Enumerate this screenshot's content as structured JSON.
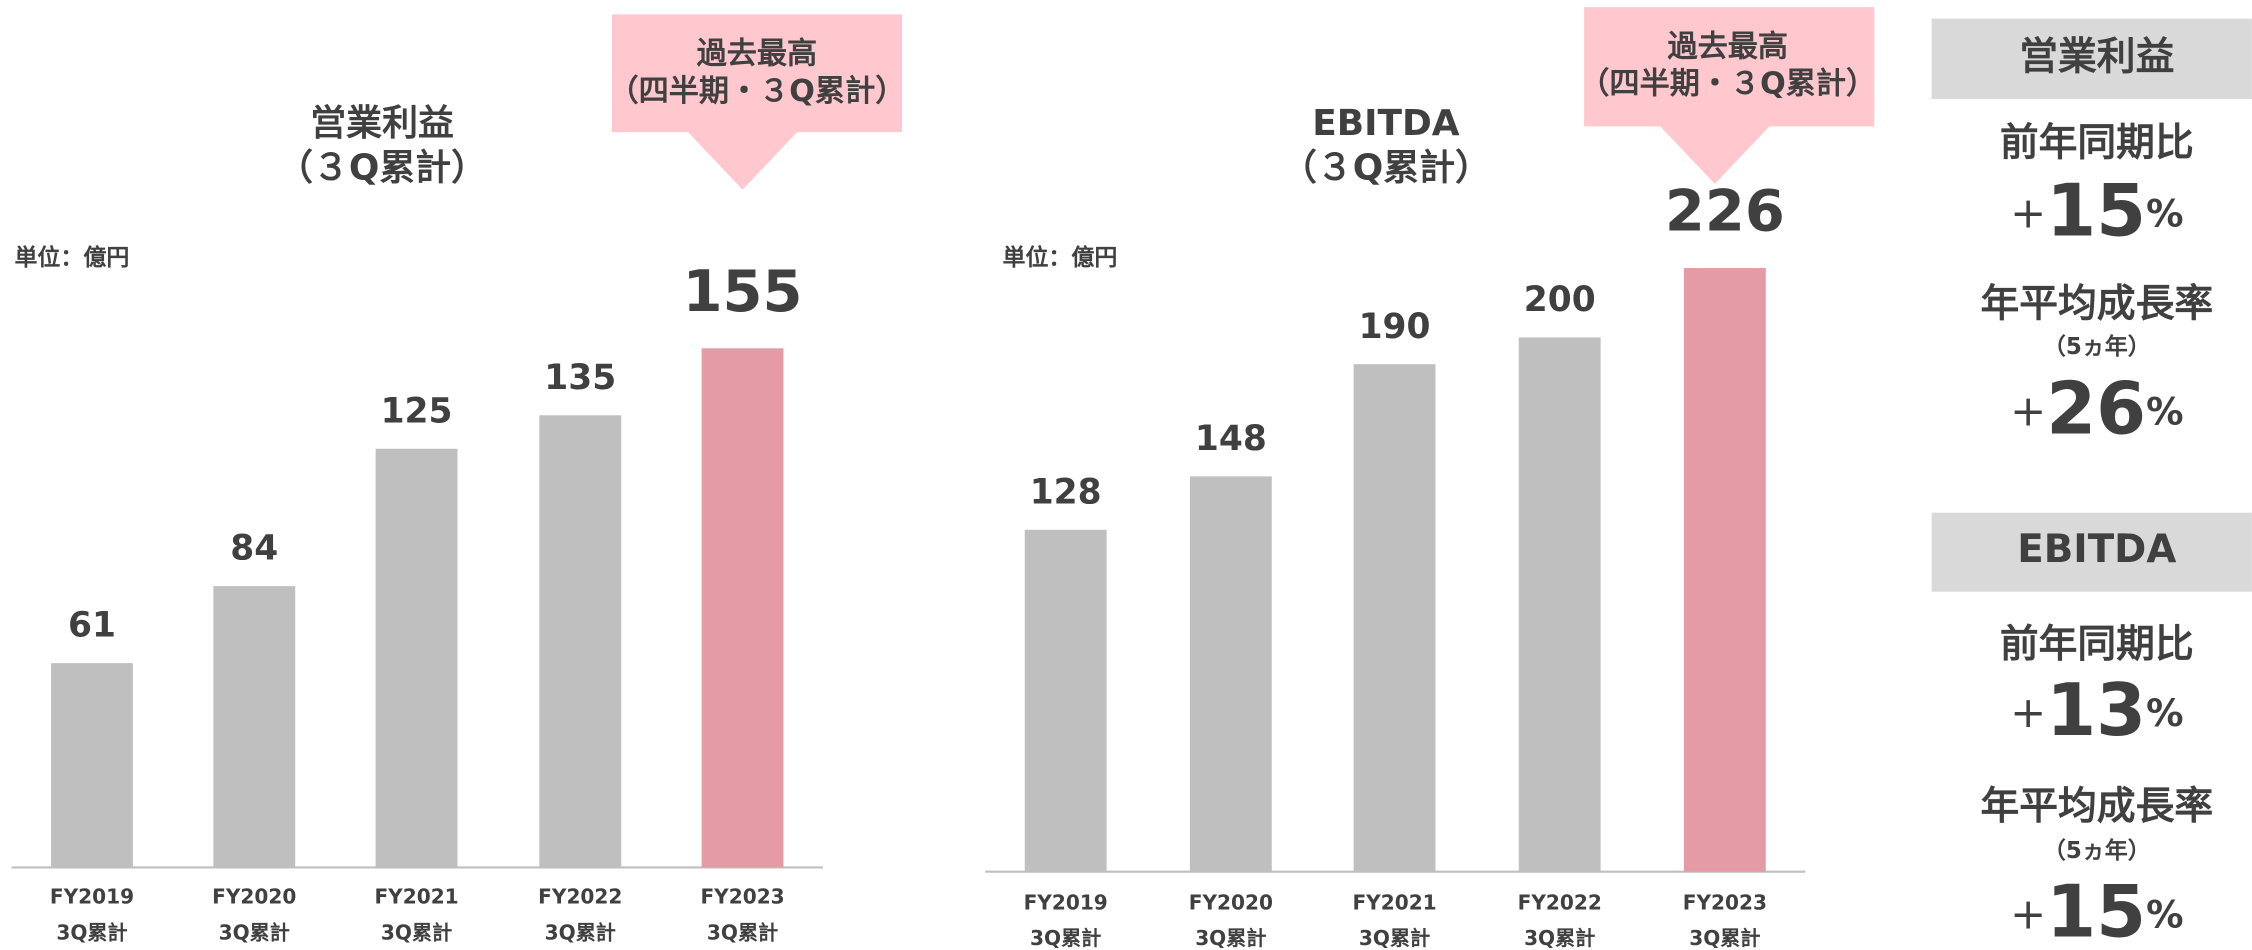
{
  "chart_data": [
    {
      "type": "bar",
      "title": "営業利益\n（３Q累計）",
      "unit_label": "単位：億円",
      "categories": [
        "FY2019\n3Q累計",
        "FY2020\n3Q累計",
        "FY2021\n3Q累計",
        "FY2022\n3Q累計",
        "FY2023\n3Q累計"
      ],
      "values": [
        61,
        84,
        125,
        135,
        155
      ],
      "colors": [
        "#bfbfbf",
        "#bfbfbf",
        "#bfbfbf",
        "#bfbfbf",
        "#e59ba5"
      ],
      "ylim": [
        0,
        250
      ],
      "annotation": "過去最高\n（四半期・３Q累計）"
    },
    {
      "type": "bar",
      "title": "EBITDA\n（３Q累計）",
      "unit_label": "単位：億円",
      "categories": [
        "FY2019\n3Q累計",
        "FY2020\n3Q累計",
        "FY2021\n3Q累計",
        "FY2022\n3Q累計",
        "FY2023\n3Q累計"
      ],
      "values": [
        128,
        148,
        190,
        200,
        226
      ],
      "colors": [
        "#bfbfbf",
        "#bfbfbf",
        "#bfbfbf",
        "#bfbfbf",
        "#e59ba5"
      ],
      "ylim": [
        0,
        250
      ],
      "annotation": "過去最高\n（四半期・３Q累計）"
    }
  ],
  "summary": [
    {
      "heading": "営業利益",
      "yoy_label": "前年同期比",
      "yoy": {
        "prefix": "+",
        "value": 15,
        "suffix": "%"
      },
      "cagr_label": "年平均成長率",
      "cagr_note": "（5ヵ年）",
      "cagr": {
        "prefix": "+",
        "value": 26,
        "suffix": "%"
      }
    },
    {
      "heading": "EBITDA",
      "yoy_label": "前年同期比",
      "yoy": {
        "prefix": "+",
        "value": 13,
        "suffix": "%"
      },
      "cagr_label": "年平均成長率",
      "cagr_note": "（5ヵ年）",
      "cagr": {
        "prefix": "+",
        "value": 15,
        "suffix": "%"
      }
    }
  ]
}
